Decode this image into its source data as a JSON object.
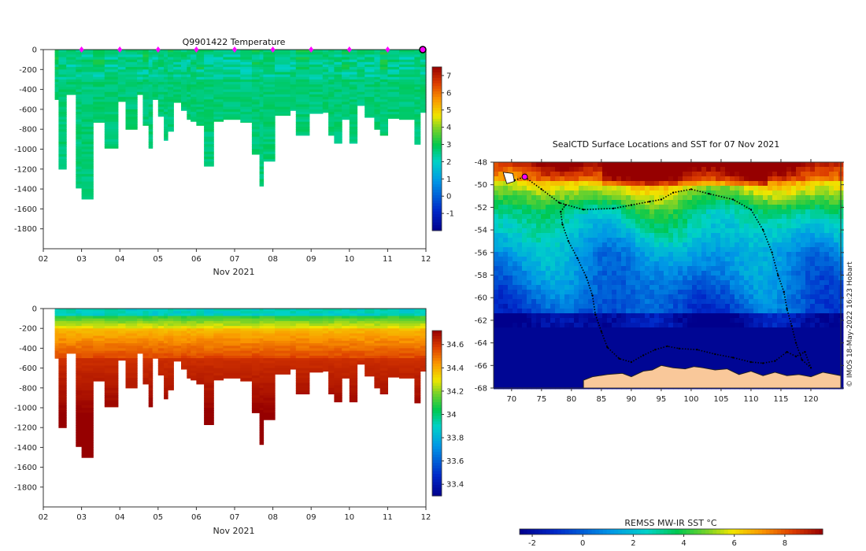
{
  "colors": {
    "axis": "#333333",
    "depth_mask": "#ffffff",
    "marker_fill": "#ff00ff",
    "land": "#f9c89a",
    "track": "#000000"
  },
  "chart_data": [
    {
      "type": "heatmap",
      "title": "Q9901422  Temperature",
      "xlabel": "Nov 2021",
      "xlim": [
        2,
        12
      ],
      "x_ticks": [
        {
          "v": 2,
          "t": "02"
        },
        {
          "v": 3,
          "t": "03"
        },
        {
          "v": 4,
          "t": "04"
        },
        {
          "v": 5,
          "t": "05"
        },
        {
          "v": 6,
          "t": "06"
        },
        {
          "v": 7,
          "t": "07"
        },
        {
          "v": 8,
          "t": "08"
        },
        {
          "v": 9,
          "t": "09"
        },
        {
          "v": 10,
          "t": "10"
        },
        {
          "v": 11,
          "t": "11"
        },
        {
          "v": 12,
          "t": "12"
        }
      ],
      "ylim": [
        -2000,
        0
      ],
      "y_ticks": [
        0,
        -200,
        -400,
        -600,
        -800,
        -1000,
        -1200,
        -1400,
        -1600,
        -1800
      ],
      "colorbar": {
        "min": -2,
        "max": 7.5,
        "ticks": [
          7,
          6,
          5,
          4,
          3,
          2,
          1,
          0,
          -1
        ]
      },
      "surface_markers": [
        3,
        4,
        5,
        6,
        7,
        8,
        9,
        10,
        11
      ],
      "last_marker": 12,
      "variable": "temperature"
    },
    {
      "type": "heatmap",
      "title": "",
      "xlabel": "Nov 2021",
      "xlim": [
        2,
        12
      ],
      "x_ticks": [
        {
          "v": 2,
          "t": "02"
        },
        {
          "v": 3,
          "t": "03"
        },
        {
          "v": 4,
          "t": "04"
        },
        {
          "v": 5,
          "t": "05"
        },
        {
          "v": 6,
          "t": "06"
        },
        {
          "v": 7,
          "t": "07"
        },
        {
          "v": 8,
          "t": "08"
        },
        {
          "v": 9,
          "t": "09"
        },
        {
          "v": 10,
          "t": "10"
        },
        {
          "v": 11,
          "t": "11"
        },
        {
          "v": 12,
          "t": "12"
        }
      ],
      "ylim": [
        -2000,
        0
      ],
      "y_ticks": [
        0,
        -200,
        -400,
        -600,
        -800,
        -1000,
        -1200,
        -1400,
        -1600,
        -1800
      ],
      "colorbar": {
        "min": 33.3,
        "max": 34.72,
        "ticks": [
          34.6,
          34.4,
          34.2,
          34,
          33.8,
          33.6,
          33.4
        ]
      },
      "variable": "salinity"
    },
    {
      "type": "heatmap",
      "title": "SealCTD Surface Locations and SST for 07 Nov 2021",
      "xlim": [
        67,
        125
      ],
      "x_ticks": [
        70,
        75,
        80,
        85,
        90,
        95,
        100,
        105,
        110,
        115,
        120
      ],
      "ylim": [
        -68,
        -48
      ],
      "y_ticks": [
        -48,
        -50,
        -52,
        -54,
        -56,
        -58,
        -60,
        -62,
        -64,
        -66,
        -68
      ],
      "colorbar": {
        "label": "REMSS MW-IR SST °C",
        "min": -2.5,
        "max": 9.5,
        "ticks": [
          -2,
          0,
          2,
          4,
          6,
          8
        ]
      },
      "current_position": {
        "lon": 72.2,
        "lat": -49.3
      },
      "track": [
        [
          70.5,
          -49.6
        ],
        [
          72.2,
          -49.3
        ],
        [
          75,
          -50.4
        ],
        [
          78,
          -51.6
        ],
        [
          82,
          -52.2
        ],
        [
          87,
          -52.1
        ],
        [
          90,
          -51.8
        ],
        [
          93,
          -51.5
        ],
        [
          95,
          -51.3
        ],
        [
          97,
          -50.7
        ],
        [
          100,
          -50.4
        ],
        [
          103,
          -50.8
        ],
        [
          107,
          -51.3
        ],
        [
          110,
          -52.2
        ],
        [
          112,
          -54
        ],
        [
          113.5,
          -56
        ],
        [
          114.5,
          -58
        ],
        [
          115.5,
          -59.5
        ],
        [
          116,
          -61
        ],
        [
          116.8,
          -62.5
        ],
        [
          117.5,
          -64
        ],
        [
          118.5,
          -65.5
        ],
        [
          120,
          -66.2
        ],
        [
          119,
          -64.8
        ],
        [
          117.5,
          -65.2
        ],
        [
          116,
          -64.8
        ],
        [
          114,
          -65.6
        ],
        [
          112,
          -65.8
        ],
        [
          110,
          -65.7
        ],
        [
          107,
          -65.3
        ],
        [
          104,
          -65.0
        ],
        [
          101,
          -64.6
        ],
        [
          98,
          -64.5
        ],
        [
          96,
          -64.3
        ],
        [
          94,
          -64.6
        ],
        [
          92,
          -65.1
        ],
        [
          90,
          -65.7
        ],
        [
          88,
          -65.4
        ],
        [
          86,
          -64.4
        ],
        [
          85,
          -63.0
        ],
        [
          84,
          -61.5
        ],
        [
          83.5,
          -59.8
        ],
        [
          82.5,
          -58.2
        ],
        [
          81,
          -56.5
        ],
        [
          79.5,
          -55
        ],
        [
          78.5,
          -53.5
        ],
        [
          78.2,
          -52.4
        ],
        [
          79,
          -51.8
        ]
      ]
    }
  ],
  "attribution": "© IMOS 18-May-2022 16:23 Hobart"
}
